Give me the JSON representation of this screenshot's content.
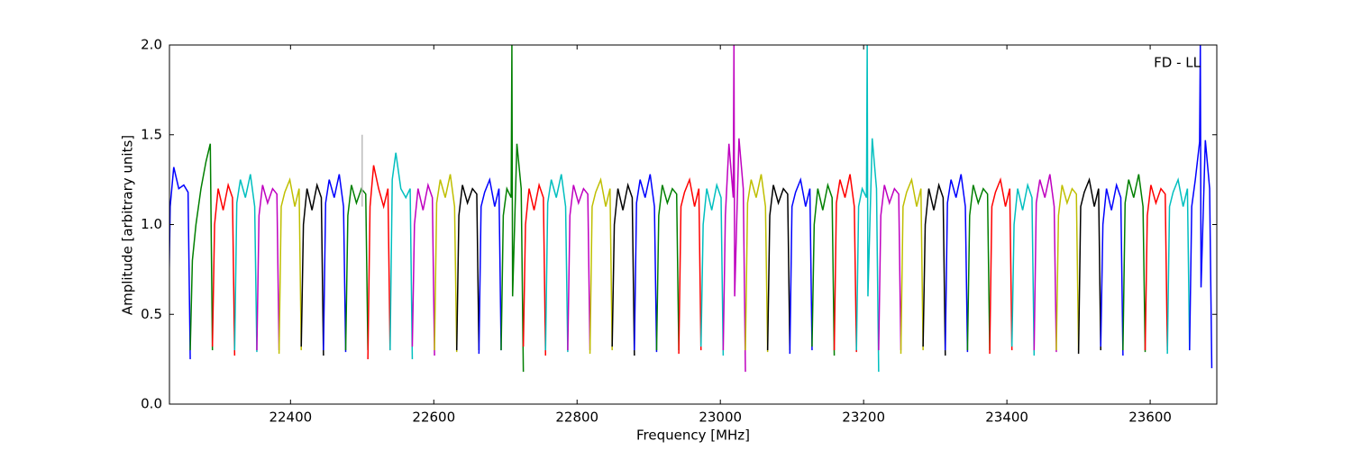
{
  "chart_data": {
    "type": "line",
    "annotation": "FD - LL",
    "xlabel": "Frequency [MHz]",
    "ylabel": "Amplitude [arbitrary units]",
    "xlim": [
      22231,
      23693
    ],
    "ylim": [
      0,
      2
    ],
    "xticks": [
      22400,
      22600,
      22800,
      23000,
      23200,
      23400,
      23600
    ],
    "yticks": [
      {
        "value": 0,
        "label": "0.0"
      },
      {
        "value": 0.5,
        "label": "0.5"
      },
      {
        "value": 1,
        "label": "1.0"
      },
      {
        "value": 1.5,
        "label": "1.5"
      },
      {
        "value": 2,
        "label": "2.0"
      }
    ],
    "series": [
      {
        "color": "#0000ff",
        "x": [
          22229,
          22232,
          22237,
          22244,
          22251,
          22257,
          22260
        ],
        "values": [
          0.3,
          1.1,
          1.32,
          1.2,
          1.22,
          1.18,
          0.25
        ]
      },
      {
        "color": "#007f00",
        "x": [
          22260,
          22263,
          22268,
          22275,
          22282,
          22288,
          22291
        ],
        "values": [
          0.3,
          0.8,
          1.0,
          1.2,
          1.35,
          1.45,
          0.3
        ]
      },
      {
        "color": "#ff0000",
        "x": [
          22291,
          22294,
          22299,
          22306,
          22313,
          22319,
          22322
        ],
        "values": [
          0.32,
          1.0,
          1.2,
          1.08,
          1.22,
          1.15,
          0.27
        ]
      },
      {
        "color": "#00bfbf",
        "x": [
          22322,
          22325,
          22330,
          22337,
          22344,
          22350,
          22353
        ],
        "values": [
          0.3,
          1.12,
          1.25,
          1.15,
          1.28,
          1.1,
          0.29
        ]
      },
      {
        "color": "#bf00bf",
        "x": [
          22353,
          22356,
          22361,
          22368,
          22375,
          22381,
          22384
        ],
        "values": [
          0.3,
          1.05,
          1.22,
          1.12,
          1.2,
          1.17,
          0.3
        ]
      },
      {
        "color": "#bfbf00",
        "x": [
          22384,
          22387,
          22392,
          22399,
          22406,
          22412,
          22415
        ],
        "values": [
          0.28,
          1.1,
          1.18,
          1.25,
          1.1,
          1.2,
          0.3
        ]
      },
      {
        "color": "#000000",
        "x": [
          22415,
          22418,
          22423,
          22430,
          22437,
          22443,
          22446
        ],
        "values": [
          0.32,
          1.0,
          1.2,
          1.08,
          1.22,
          1.15,
          0.27
        ]
      },
      {
        "color": "#0000ff",
        "x": [
          22446,
          22449,
          22454,
          22461,
          22468,
          22474,
          22477
        ],
        "values": [
          0.3,
          1.12,
          1.25,
          1.15,
          1.28,
          1.1,
          0.29
        ]
      },
      {
        "color": "#007f00",
        "x": [
          22477,
          22480,
          22485,
          22492,
          22499,
          22505,
          22508
        ],
        "values": [
          0.3,
          1.05,
          1.22,
          1.12,
          1.2,
          1.17,
          0.3
        ]
      },
      {
        "color": "#ff0000",
        "x": [
          22508,
          22511,
          22516,
          22523,
          22530,
          22536,
          22539
        ],
        "values": [
          0.25,
          1.1,
          1.33,
          1.2,
          1.1,
          1.2,
          0.3
        ]
      },
      {
        "color": "#00bfbf",
        "x": [
          22539,
          22542,
          22547,
          22554,
          22561,
          22567,
          22570
        ],
        "values": [
          0.3,
          1.25,
          1.4,
          1.2,
          1.15,
          1.2,
          0.25
        ]
      },
      {
        "color": "#bf00bf",
        "x": [
          22570,
          22573,
          22578,
          22585,
          22592,
          22598,
          22601
        ],
        "values": [
          0.32,
          1.0,
          1.2,
          1.08,
          1.22,
          1.15,
          0.27
        ]
      },
      {
        "color": "#bfbf00",
        "x": [
          22601,
          22604,
          22609,
          22616,
          22623,
          22629,
          22632
        ],
        "values": [
          0.3,
          1.12,
          1.25,
          1.15,
          1.28,
          1.1,
          0.29
        ]
      },
      {
        "color": "#000000",
        "x": [
          22632,
          22635,
          22640,
          22647,
          22654,
          22660,
          22663
        ],
        "values": [
          0.3,
          1.05,
          1.22,
          1.12,
          1.2,
          1.17,
          0.3
        ]
      },
      {
        "color": "#0000ff",
        "x": [
          22663,
          22666,
          22671,
          22678,
          22685,
          22691,
          22694
        ],
        "values": [
          0.28,
          1.1,
          1.18,
          1.25,
          1.1,
          1.2,
          0.3
        ]
      },
      {
        "color": "#007f00",
        "x": [
          22694,
          22697,
          22702,
          22708,
          22709,
          22710,
          22716,
          22722,
          22725
        ],
        "values": [
          0.3,
          1.05,
          1.2,
          1.15,
          2.0,
          0.6,
          1.45,
          1.2,
          0.18
        ]
      },
      {
        "color": "#ff0000",
        "x": [
          22725,
          22728,
          22733,
          22740,
          22747,
          22753,
          22756
        ],
        "values": [
          0.32,
          1.0,
          1.2,
          1.08,
          1.22,
          1.15,
          0.27
        ]
      },
      {
        "color": "#00bfbf",
        "x": [
          22756,
          22759,
          22764,
          22771,
          22778,
          22784,
          22787
        ],
        "values": [
          0.3,
          1.12,
          1.25,
          1.15,
          1.28,
          1.1,
          0.29
        ]
      },
      {
        "color": "#bf00bf",
        "x": [
          22787,
          22790,
          22795,
          22802,
          22809,
          22815,
          22818
        ],
        "values": [
          0.3,
          1.05,
          1.22,
          1.12,
          1.2,
          1.17,
          0.3
        ]
      },
      {
        "color": "#bfbf00",
        "x": [
          22818,
          22821,
          22826,
          22833,
          22840,
          22846,
          22849
        ],
        "values": [
          0.28,
          1.1,
          1.18,
          1.25,
          1.1,
          1.2,
          0.3
        ]
      },
      {
        "color": "#000000",
        "x": [
          22849,
          22852,
          22857,
          22864,
          22871,
          22877,
          22880
        ],
        "values": [
          0.32,
          1.0,
          1.2,
          1.08,
          1.22,
          1.15,
          0.27
        ]
      },
      {
        "color": "#0000ff",
        "x": [
          22880,
          22883,
          22888,
          22895,
          22902,
          22908,
          22911
        ],
        "values": [
          0.3,
          1.12,
          1.25,
          1.15,
          1.28,
          1.1,
          0.29
        ]
      },
      {
        "color": "#007f00",
        "x": [
          22911,
          22914,
          22919,
          22926,
          22933,
          22939,
          22942
        ],
        "values": [
          0.3,
          1.05,
          1.22,
          1.12,
          1.2,
          1.17,
          0.3
        ]
      },
      {
        "color": "#ff0000",
        "x": [
          22942,
          22945,
          22950,
          22957,
          22964,
          22970,
          22973
        ],
        "values": [
          0.28,
          1.1,
          1.18,
          1.25,
          1.1,
          1.2,
          0.3
        ]
      },
      {
        "color": "#00bfbf",
        "x": [
          22973,
          22976,
          22981,
          22988,
          22995,
          23001,
          23004
        ],
        "values": [
          0.32,
          1.0,
          1.2,
          1.08,
          1.22,
          1.15,
          0.27
        ]
      },
      {
        "color": "#bf00bf",
        "x": [
          23004,
          23007,
          23012,
          23018,
          23019,
          23020,
          23026,
          23032,
          23035
        ],
        "values": [
          0.3,
          1.05,
          1.45,
          1.15,
          2.0,
          0.6,
          1.48,
          1.2,
          0.18
        ]
      },
      {
        "color": "#bfbf00",
        "x": [
          23035,
          23038,
          23043,
          23050,
          23057,
          23063,
          23066
        ],
        "values": [
          0.3,
          1.12,
          1.25,
          1.15,
          1.28,
          1.1,
          0.29
        ]
      },
      {
        "color": "#000000",
        "x": [
          23066,
          23069,
          23074,
          23081,
          23088,
          23094,
          23097
        ],
        "values": [
          0.3,
          1.05,
          1.22,
          1.12,
          1.2,
          1.17,
          0.3
        ]
      },
      {
        "color": "#0000ff",
        "x": [
          23097,
          23100,
          23105,
          23112,
          23119,
          23125,
          23128
        ],
        "values": [
          0.28,
          1.1,
          1.18,
          1.25,
          1.1,
          1.2,
          0.3
        ]
      },
      {
        "color": "#007f00",
        "x": [
          23128,
          23131,
          23136,
          23143,
          23150,
          23156,
          23159
        ],
        "values": [
          0.32,
          1.0,
          1.2,
          1.08,
          1.22,
          1.15,
          0.27
        ]
      },
      {
        "color": "#ff0000",
        "x": [
          23159,
          23162,
          23167,
          23174,
          23181,
          23187,
          23190
        ],
        "values": [
          0.3,
          1.12,
          1.25,
          1.15,
          1.28,
          1.1,
          0.29
        ]
      },
      {
        "color": "#00bfbf",
        "x": [
          23190,
          23193,
          23198,
          23204,
          23205,
          23206,
          23212,
          23218,
          23221
        ],
        "values": [
          0.3,
          1.1,
          1.2,
          1.15,
          2.0,
          0.6,
          1.48,
          1.2,
          0.18
        ]
      },
      {
        "color": "#bf00bf",
        "x": [
          23221,
          23224,
          23229,
          23236,
          23243,
          23249,
          23252
        ],
        "values": [
          0.3,
          1.05,
          1.22,
          1.12,
          1.2,
          1.17,
          0.3
        ]
      },
      {
        "color": "#bfbf00",
        "x": [
          23252,
          23255,
          23260,
          23267,
          23274,
          23280,
          23283
        ],
        "values": [
          0.28,
          1.1,
          1.18,
          1.25,
          1.1,
          1.2,
          0.3
        ]
      },
      {
        "color": "#000000",
        "x": [
          23283,
          23286,
          23291,
          23298,
          23305,
          23311,
          23314
        ],
        "values": [
          0.32,
          1.0,
          1.2,
          1.08,
          1.22,
          1.15,
          0.27
        ]
      },
      {
        "color": "#0000ff",
        "x": [
          23314,
          23317,
          23322,
          23329,
          23336,
          23342,
          23345
        ],
        "values": [
          0.3,
          1.12,
          1.25,
          1.15,
          1.28,
          1.1,
          0.29
        ]
      },
      {
        "color": "#007f00",
        "x": [
          23345,
          23348,
          23353,
          23360,
          23367,
          23373,
          23376
        ],
        "values": [
          0.3,
          1.05,
          1.22,
          1.12,
          1.2,
          1.17,
          0.3
        ]
      },
      {
        "color": "#ff0000",
        "x": [
          23376,
          23379,
          23384,
          23391,
          23398,
          23404,
          23407
        ],
        "values": [
          0.28,
          1.1,
          1.18,
          1.25,
          1.1,
          1.2,
          0.3
        ]
      },
      {
        "color": "#00bfbf",
        "x": [
          23407,
          23410,
          23415,
          23422,
          23429,
          23435,
          23438
        ],
        "values": [
          0.32,
          1.0,
          1.2,
          1.08,
          1.22,
          1.15,
          0.27
        ]
      },
      {
        "color": "#bf00bf",
        "x": [
          23438,
          23441,
          23446,
          23453,
          23460,
          23466,
          23469
        ],
        "values": [
          0.3,
          1.12,
          1.25,
          1.15,
          1.28,
          1.1,
          0.29
        ]
      },
      {
        "color": "#bfbf00",
        "x": [
          23469,
          23472,
          23477,
          23484,
          23491,
          23497,
          23500
        ],
        "values": [
          0.3,
          1.05,
          1.22,
          1.12,
          1.2,
          1.17,
          0.3
        ]
      },
      {
        "color": "#000000",
        "x": [
          23500,
          23503,
          23508,
          23515,
          23522,
          23528,
          23531
        ],
        "values": [
          0.28,
          1.1,
          1.18,
          1.25,
          1.1,
          1.2,
          0.3
        ]
      },
      {
        "color": "#0000ff",
        "x": [
          23531,
          23534,
          23539,
          23546,
          23553,
          23559,
          23562
        ],
        "values": [
          0.32,
          1.0,
          1.2,
          1.08,
          1.22,
          1.15,
          0.27
        ]
      },
      {
        "color": "#007f00",
        "x": [
          23562,
          23565,
          23570,
          23577,
          23584,
          23590,
          23593
        ],
        "values": [
          0.3,
          1.12,
          1.25,
          1.15,
          1.28,
          1.1,
          0.29
        ]
      },
      {
        "color": "#ff0000",
        "x": [
          23593,
          23596,
          23601,
          23608,
          23615,
          23621,
          23624
        ],
        "values": [
          0.3,
          1.05,
          1.22,
          1.12,
          1.2,
          1.17,
          0.3
        ]
      },
      {
        "color": "#00bfbf",
        "x": [
          23624,
          23627,
          23632,
          23639,
          23646,
          23652,
          23655
        ],
        "values": [
          0.28,
          1.1,
          1.18,
          1.25,
          1.1,
          1.2,
          0.3
        ]
      },
      {
        "color": "#0000ff",
        "x": [
          23655,
          23658,
          23663,
          23669,
          23670,
          23671,
          23677,
          23683,
          23686
        ],
        "values": [
          0.3,
          1.1,
          1.25,
          1.46,
          2.0,
          0.65,
          1.47,
          1.2,
          0.2
        ]
      },
      {
        "color": "#bbbbbb",
        "x": [
          22500,
          22500
        ],
        "values": [
          1.1,
          1.5
        ]
      }
    ]
  }
}
